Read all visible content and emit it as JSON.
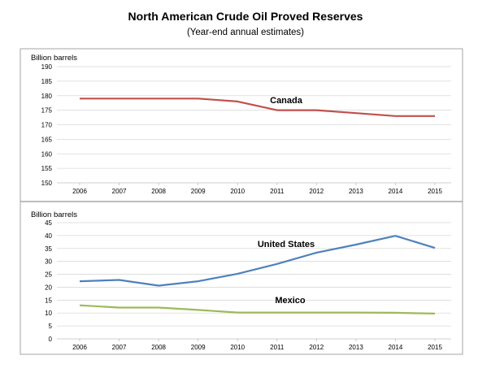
{
  "title": "North American Crude Oil Proved Reserves",
  "subtitle": "(Year-end annual estimates)",
  "chart_data": [
    {
      "type": "line",
      "ylabel": "Billion barrels",
      "ylim": [
        150,
        190
      ],
      "yticks": [
        150,
        155,
        160,
        165,
        170,
        175,
        180,
        185,
        190
      ],
      "categories": [
        "2006",
        "2007",
        "2008",
        "2009",
        "2010",
        "2011",
        "2012",
        "2013",
        "2014",
        "2015"
      ],
      "grid": true,
      "series": [
        {
          "name": "Canada",
          "color": "#c0504d",
          "values": [
            179,
            179,
            179,
            179,
            178,
            175,
            175,
            174,
            173,
            173
          ]
        }
      ]
    },
    {
      "type": "line",
      "ylabel": "Billion barrels",
      "ylim": [
        0,
        45
      ],
      "yticks": [
        0,
        5,
        10,
        15,
        20,
        25,
        30,
        35,
        40,
        45
      ],
      "categories": [
        "2006",
        "2007",
        "2008",
        "2009",
        "2010",
        "2011",
        "2012",
        "2013",
        "2014",
        "2015"
      ],
      "grid": true,
      "series": [
        {
          "name": "United States",
          "color": "#4f81bd",
          "values": [
            22.3,
            22.8,
            20.6,
            22.3,
            25.2,
            29.0,
            33.4,
            36.5,
            39.9,
            35.2
          ]
        },
        {
          "name": "Mexico",
          "color": "#9bbb59",
          "values": [
            13.0,
            12.1,
            12.1,
            11.2,
            10.2,
            10.2,
            10.2,
            10.2,
            10.1,
            9.8
          ]
        }
      ]
    }
  ]
}
